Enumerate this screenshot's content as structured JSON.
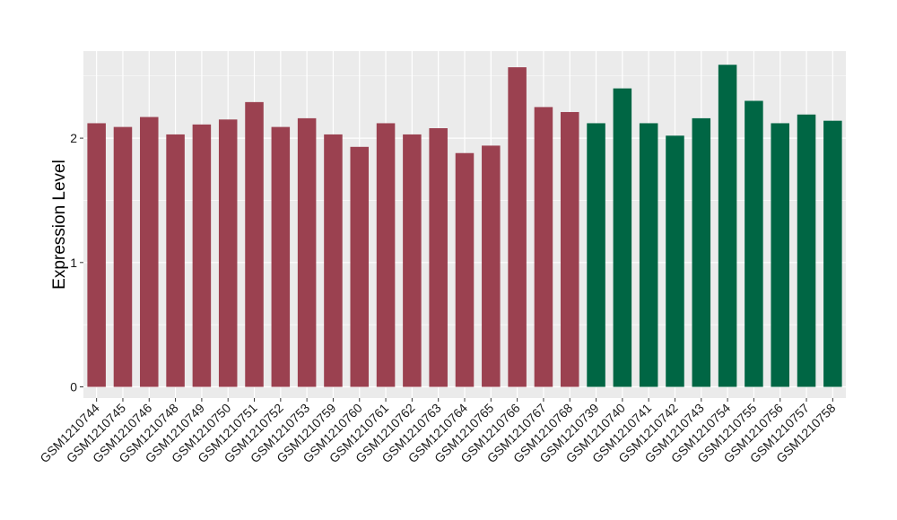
{
  "chart_data": {
    "type": "bar",
    "title": "",
    "xlabel": "",
    "ylabel": "Expression Level",
    "ylim": [
      -0.09,
      2.7
    ],
    "yticks": [
      0,
      1,
      2
    ],
    "grid": true,
    "legend": "none",
    "colors": {
      "group1": "#9b4150",
      "group2": "#006644",
      "panel": "#ebebeb",
      "grid": "#ffffff"
    },
    "categories": [
      "GSM1210744",
      "GSM1210745",
      "GSM1210746",
      "GSM1210748",
      "GSM1210749",
      "GSM1210750",
      "GSM1210751",
      "GSM1210752",
      "GSM1210753",
      "GSM1210759",
      "GSM1210760",
      "GSM1210761",
      "GSM1210762",
      "GSM1210763",
      "GSM1210764",
      "GSM1210765",
      "GSM1210766",
      "GSM1210767",
      "GSM1210768",
      "GSM1210739",
      "GSM1210740",
      "GSM1210741",
      "GSM1210742",
      "GSM1210743",
      "GSM1210754",
      "GSM1210755",
      "GSM1210756",
      "GSM1210757",
      "GSM1210758"
    ],
    "values": [
      2.12,
      2.09,
      2.17,
      2.03,
      2.11,
      2.15,
      2.29,
      2.09,
      2.16,
      2.03,
      1.93,
      2.12,
      2.03,
      2.08,
      1.88,
      1.94,
      2.57,
      2.25,
      2.21,
      2.12,
      2.4,
      2.12,
      2.02,
      2.16,
      2.59,
      2.3,
      2.12,
      2.19,
      2.14
    ],
    "groups": [
      1,
      1,
      1,
      1,
      1,
      1,
      1,
      1,
      1,
      1,
      1,
      1,
      1,
      1,
      1,
      1,
      1,
      1,
      1,
      2,
      2,
      2,
      2,
      2,
      2,
      2,
      2,
      2,
      2
    ]
  }
}
